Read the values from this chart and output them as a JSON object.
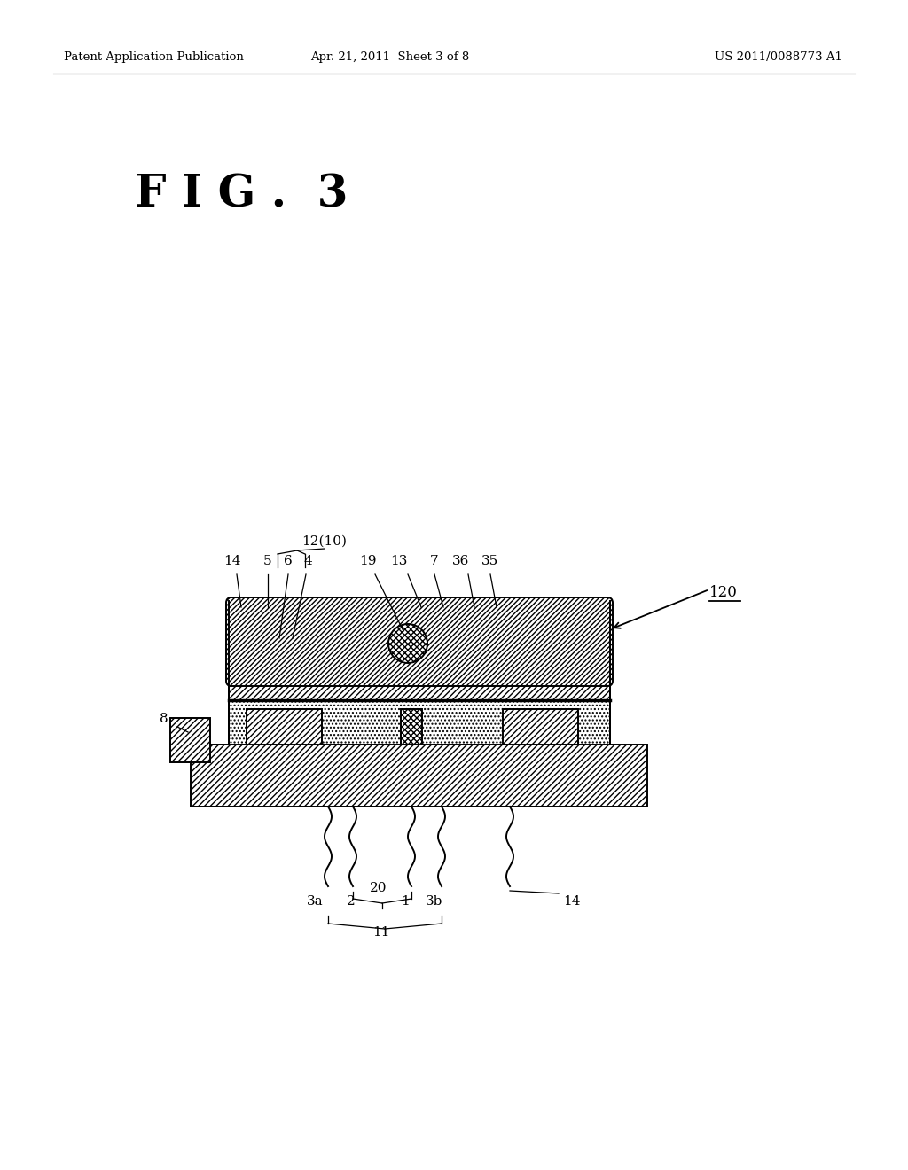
{
  "bg_color": "#ffffff",
  "header_left": "Patent Application Publication",
  "header_center": "Apr. 21, 2011  Sheet 3 of 8",
  "header_right": "US 2011/0088773 A1",
  "fig_label": "F I G .  3",
  "ref_120": "120",
  "black": "#000000"
}
